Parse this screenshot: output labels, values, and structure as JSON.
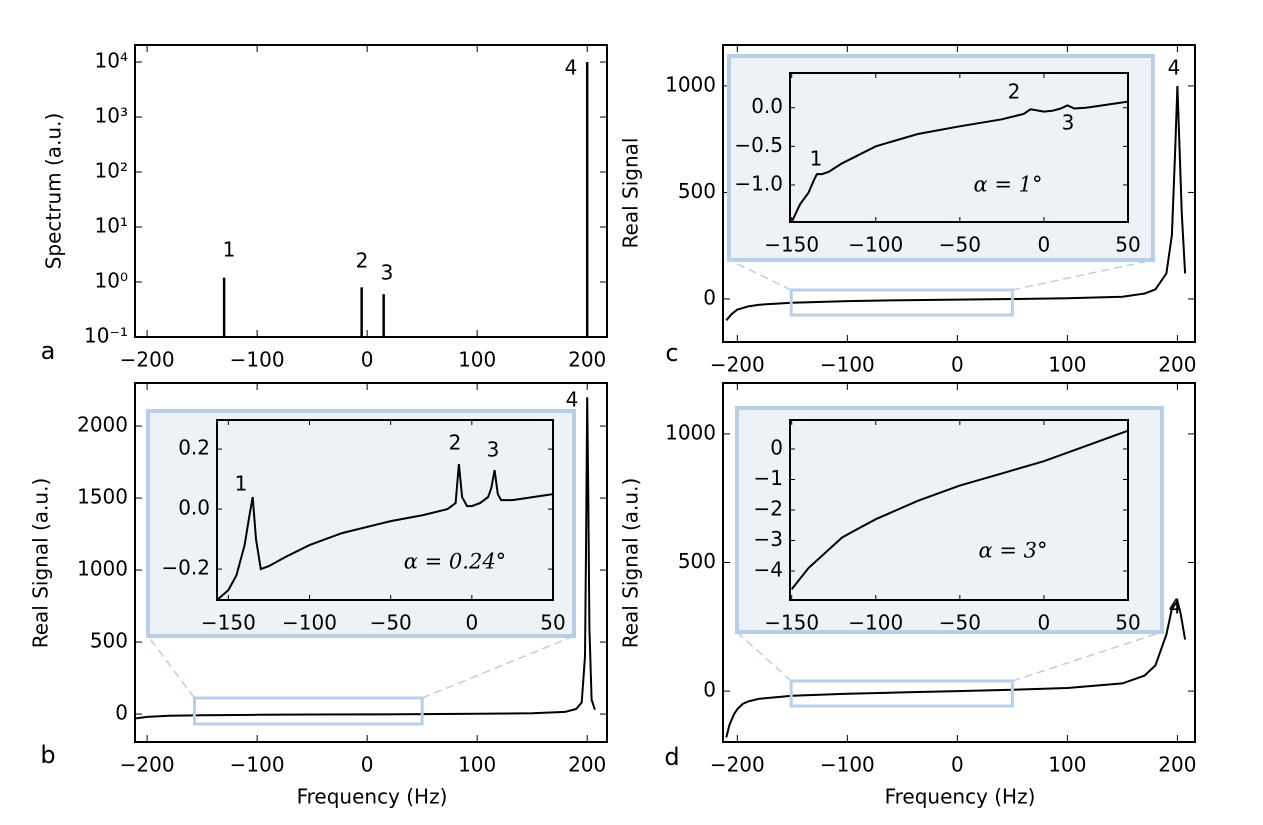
{
  "chart_data": [
    {
      "type": "stem",
      "panel": "a",
      "ylabel": "Spectrum (a.u.)",
      "log_y": true,
      "color": "#000000",
      "xlim": [
        -211,
        218
      ],
      "ylim": [
        0.1,
        20400
      ],
      "xticks": [
        {
          "value": -200,
          "label": "−200"
        },
        {
          "value": -100,
          "label": "−100"
        },
        0,
        100,
        200
      ],
      "yticks": [
        {
          "value": 0.1,
          "label": "10⁻¹"
        },
        {
          "value": 1,
          "label": "10⁰"
        },
        {
          "value": 10,
          "label": "10¹"
        },
        {
          "value": 100,
          "label": "10²"
        },
        {
          "value": 1000,
          "label": "10³"
        },
        {
          "value": 10000,
          "label": "10⁴"
        }
      ],
      "series": [
        {
          "x": [
            -130,
            -5,
            15,
            200
          ],
          "values": [
            1.2,
            0.8,
            0.6,
            10000
          ]
        }
      ],
      "annotations": [
        "1",
        "2",
        "3",
        "4"
      ]
    },
    {
      "type": "line",
      "panel": "b",
      "ylabel": "Real Signal (a.u.)",
      "xlabel": "Frequency (Hz)",
      "color": "#000000",
      "xlim": [
        -211,
        218
      ],
      "ylim": [
        -194,
        2299
      ],
      "xticks": [
        {
          "value": -200,
          "label": "−200"
        },
        {
          "value": -100,
          "label": "−100"
        },
        0,
        100,
        200
      ],
      "yticks": [
        0,
        500,
        1000,
        1500,
        2000
      ],
      "series": [
        {
          "x": [
            -210,
            -200,
            -180,
            -150,
            -100,
            -50,
            0,
            50,
            100,
            150,
            180,
            190,
            195,
            198,
            199,
            200,
            201,
            202,
            204,
            207
          ],
          "values": [
            -30,
            -20,
            -12,
            -8,
            -5,
            -3,
            -2,
            0,
            2,
            5,
            15,
            35,
            80,
            400,
            1200,
            2200,
            1500,
            600,
            100,
            30
          ]
        }
      ],
      "annotations": [
        "4"
      ]
    },
    {
      "type": "line",
      "inset": true,
      "note": "α = 0.24°",
      "color": "#000000",
      "xlim": [
        -157,
        50
      ],
      "ylim": [
        -0.303,
        0.297
      ],
      "xticks": [
        {
          "value": -150,
          "label": "−150"
        },
        {
          "value": -100,
          "label": "−100"
        },
        {
          "value": -50,
          "label": "−50"
        },
        0,
        50
      ],
      "yticks": [
        {
          "value": -0.2,
          "label": "−0.2"
        },
        {
          "value": 0,
          "label": "0.0"
        },
        0.2
      ],
      "series": [
        {
          "x": [
            -157,
            -150,
            -145,
            -140,
            -137,
            -135,
            -133,
            -130,
            -125,
            -115,
            -100,
            -80,
            -50,
            -30,
            -15,
            -10,
            -8,
            -6,
            -3,
            0,
            5,
            10,
            12,
            14,
            16,
            18,
            25,
            50
          ],
          "values": [
            -0.32,
            -0.27,
            -0.22,
            -0.12,
            -0.02,
            0.04,
            -0.1,
            -0.2,
            -0.19,
            -0.16,
            -0.12,
            -0.08,
            -0.04,
            -0.02,
            0.0,
            0.02,
            0.15,
            0.04,
            0.01,
            0.01,
            0.02,
            0.04,
            0.07,
            0.13,
            0.05,
            0.03,
            0.03,
            0.05
          ]
        }
      ],
      "annotations": [
        "1",
        "2",
        "3"
      ]
    },
    {
      "type": "line",
      "panel": "c",
      "ylabel": "Real Signal",
      "color": "#000000",
      "xlim": [
        -213,
        216
      ],
      "ylim": [
        -202,
        1192
      ],
      "xticks": [
        {
          "value": -200,
          "label": "−200"
        },
        {
          "value": -100,
          "label": "−100"
        },
        0,
        100,
        200
      ],
      "yticks": [
        0,
        500,
        1000
      ],
      "series": [
        {
          "x": [
            -210,
            -205,
            -200,
            -190,
            -180,
            -150,
            -100,
            -50,
            0,
            50,
            100,
            150,
            170,
            180,
            190,
            195,
            198,
            200,
            202,
            204,
            207
          ],
          "values": [
            -100,
            -70,
            -50,
            -35,
            -27,
            -18,
            -10,
            -6,
            -3,
            0,
            3,
            10,
            25,
            45,
            120,
            300,
            700,
            1000,
            700,
            400,
            120
          ]
        }
      ],
      "annotations": [
        "4"
      ]
    },
    {
      "type": "line",
      "inset": true,
      "note": "α = 1°",
      "color": "#000000",
      "xlim": [
        -151,
        50
      ],
      "ylim": [
        -1.48,
        0.45
      ],
      "xticks": [
        {
          "value": -150,
          "label": "−150"
        },
        {
          "value": -100,
          "label": "−100"
        },
        {
          "value": -50,
          "label": "−50"
        },
        0,
        50
      ],
      "yticks": [
        {
          "value": -1,
          "label": "−1.0"
        },
        {
          "value": -0.5,
          "label": "−0.5"
        },
        {
          "value": 0,
          "label": "0.0"
        }
      ],
      "series": [
        {
          "x": [
            -150,
            -145,
            -140,
            -137,
            -135,
            -132,
            -128,
            -120,
            -100,
            -75,
            -50,
            -25,
            -12,
            -8,
            -5,
            0,
            5,
            10,
            14,
            18,
            25,
            50
          ],
          "values": [
            -1.5,
            -1.25,
            -1.1,
            -0.95,
            -0.86,
            -0.86,
            -0.83,
            -0.72,
            -0.5,
            -0.34,
            -0.24,
            -0.15,
            -0.08,
            -0.02,
            -0.03,
            -0.05,
            -0.04,
            -0.01,
            0.03,
            -0.01,
            0.0,
            0.08
          ]
        }
      ],
      "annotations": [
        "1",
        "2",
        "3"
      ]
    },
    {
      "type": "line",
      "panel": "d",
      "ylabel": "Real Signal (a.u.)",
      "xlabel": "Frequency (Hz)",
      "color": "#000000",
      "xlim": [
        -213,
        216
      ],
      "ylim": [
        -198,
        1198
      ],
      "xticks": [
        {
          "value": -200,
          "label": "−200"
        },
        {
          "value": -100,
          "label": "−100"
        },
        0,
        100,
        200
      ],
      "yticks": [
        0,
        500,
        1000
      ],
      "series": [
        {
          "x": [
            -210,
            -207,
            -203,
            -200,
            -195,
            -190,
            -180,
            -150,
            -100,
            -50,
            0,
            50,
            100,
            150,
            170,
            180,
            190,
            195,
            200,
            203,
            207
          ],
          "values": [
            -180,
            -130,
            -90,
            -70,
            -50,
            -40,
            -30,
            -18,
            -10,
            -5,
            0,
            5,
            12,
            30,
            60,
            100,
            220,
            320,
            350,
            300,
            200
          ]
        }
      ],
      "annotations": [
        "4"
      ]
    },
    {
      "type": "line",
      "inset": true,
      "note": "α = 3°",
      "color": "#000000",
      "xlim": [
        -151,
        50
      ],
      "ylim": [
        -4.95,
        0.95
      ],
      "xticks": [
        {
          "value": -150,
          "label": "−150"
        },
        {
          "value": -100,
          "label": "−100"
        },
        {
          "value": -50,
          "label": "−50"
        },
        0,
        50
      ],
      "yticks": [
        {
          "value": -4,
          "label": "−4"
        },
        {
          "value": -3,
          "label": "−3"
        },
        {
          "value": -2,
          "label": "−2"
        },
        {
          "value": -1,
          "label": "−1"
        },
        0
      ],
      "series": [
        {
          "x": [
            -150,
            -140,
            -130,
            -120,
            -110,
            -100,
            -75,
            -50,
            -25,
            0,
            25,
            50
          ],
          "values": [
            -4.6,
            -3.9,
            -3.4,
            -2.9,
            -2.6,
            -2.3,
            -1.7,
            -1.2,
            -0.8,
            -0.4,
            0.1,
            0.6
          ]
        }
      ],
      "annotations": []
    }
  ]
}
